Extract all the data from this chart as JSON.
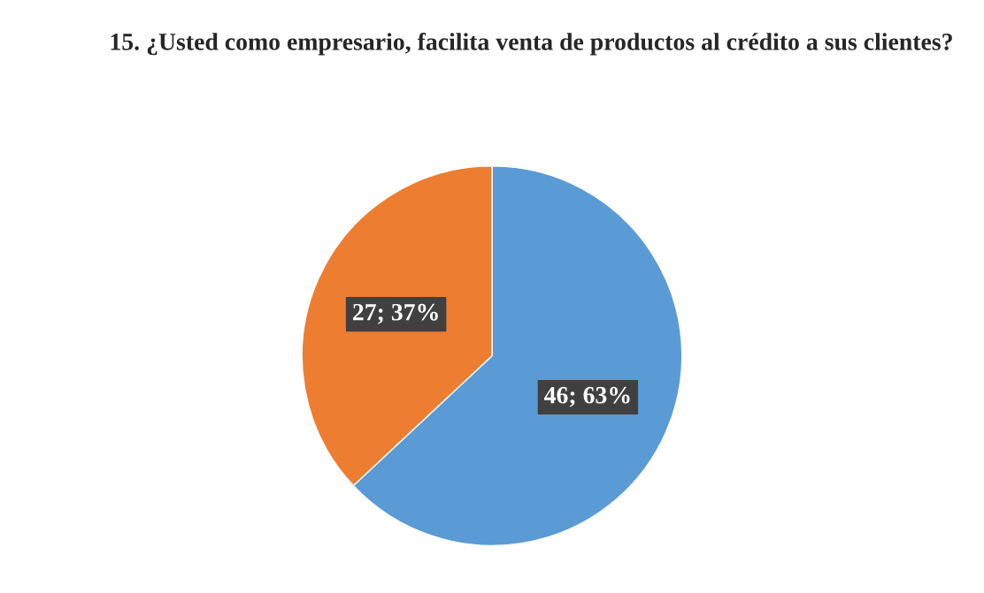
{
  "chart_data": {
    "type": "pie",
    "title": "15. ¿Usted como empresario, facilita venta de productos al crédito a sus clientes?",
    "categories": [
      null,
      null
    ],
    "values": [
      46,
      27
    ],
    "colors": [
      "#5b9bd5",
      "#ed7d31"
    ],
    "value_labels": [
      "46; 63%",
      "27; 37%"
    ]
  }
}
